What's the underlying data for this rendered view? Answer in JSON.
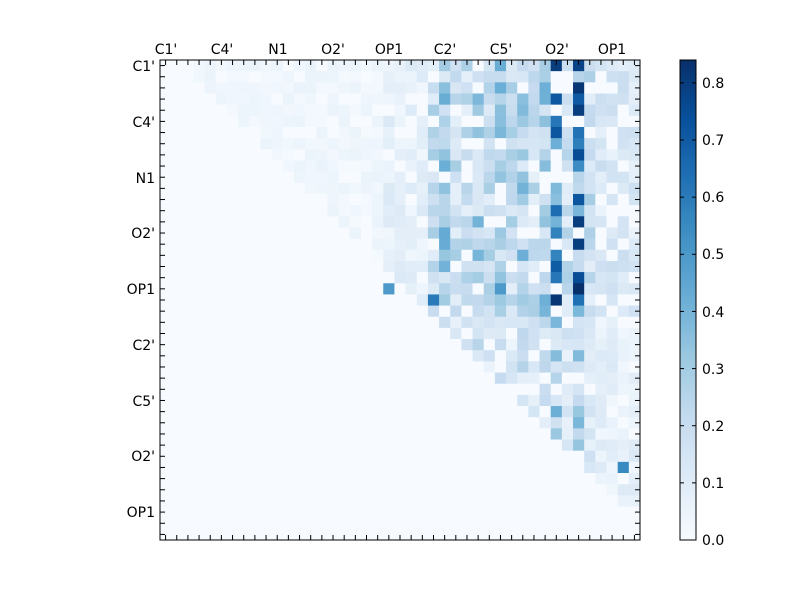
{
  "chart_data": {
    "type": "heatmap",
    "title": "",
    "xlabel": "",
    "ylabel": "",
    "matrix_size": 43,
    "x_tick_labels": [
      "C1'",
      "C4'",
      "N1",
      "O2'",
      "OP1",
      "C2'",
      "C5'",
      "O2'",
      "OP1"
    ],
    "y_tick_labels": [
      "C1'",
      "C4'",
      "N1",
      "O2'",
      "OP1",
      "C2'",
      "C5'",
      "O2'",
      "OP1"
    ],
    "tick_label_indices": [
      0,
      5,
      10,
      15,
      20,
      25,
      30,
      35,
      40
    ],
    "colormap": "Blues",
    "colors": {
      "low": "#f7fbff",
      "high": "#08306b"
    },
    "colorbar": {
      "vmin": 0.0,
      "vmax": 0.84,
      "ticks": [
        0.0,
        0.1,
        0.2,
        0.3,
        0.4,
        0.5,
        0.6,
        0.7,
        0.8
      ],
      "tick_labels": [
        "0.0",
        "0.1",
        "0.2",
        "0.3",
        "0.4",
        "0.5",
        "0.6",
        "0.7",
        "0.8"
      ]
    },
    "strong_cells": [
      {
        "row": 0,
        "col": 35,
        "value": 0.8
      },
      {
        "row": 0,
        "col": 37,
        "value": 0.78
      },
      {
        "row": 2,
        "col": 37,
        "value": 0.82
      },
      {
        "row": 4,
        "col": 37,
        "value": 0.8
      },
      {
        "row": 6,
        "col": 35,
        "value": 0.72
      },
      {
        "row": 8,
        "col": 37,
        "value": 0.75
      },
      {
        "row": 12,
        "col": 37,
        "value": 0.72
      },
      {
        "row": 14,
        "col": 37,
        "value": 0.8
      },
      {
        "row": 16,
        "col": 37,
        "value": 0.8
      },
      {
        "row": 18,
        "col": 35,
        "value": 0.7
      },
      {
        "row": 19,
        "col": 37,
        "value": 0.75
      },
      {
        "row": 20,
        "col": 37,
        "value": 0.84
      },
      {
        "row": 21,
        "col": 35,
        "value": 0.82
      },
      {
        "row": 20,
        "col": 20,
        "value": 0.5
      },
      {
        "row": 20,
        "col": 30,
        "value": 0.5
      },
      {
        "row": 21,
        "col": 24,
        "value": 0.6
      },
      {
        "row": 36,
        "col": 41,
        "value": 0.55
      }
    ]
  }
}
